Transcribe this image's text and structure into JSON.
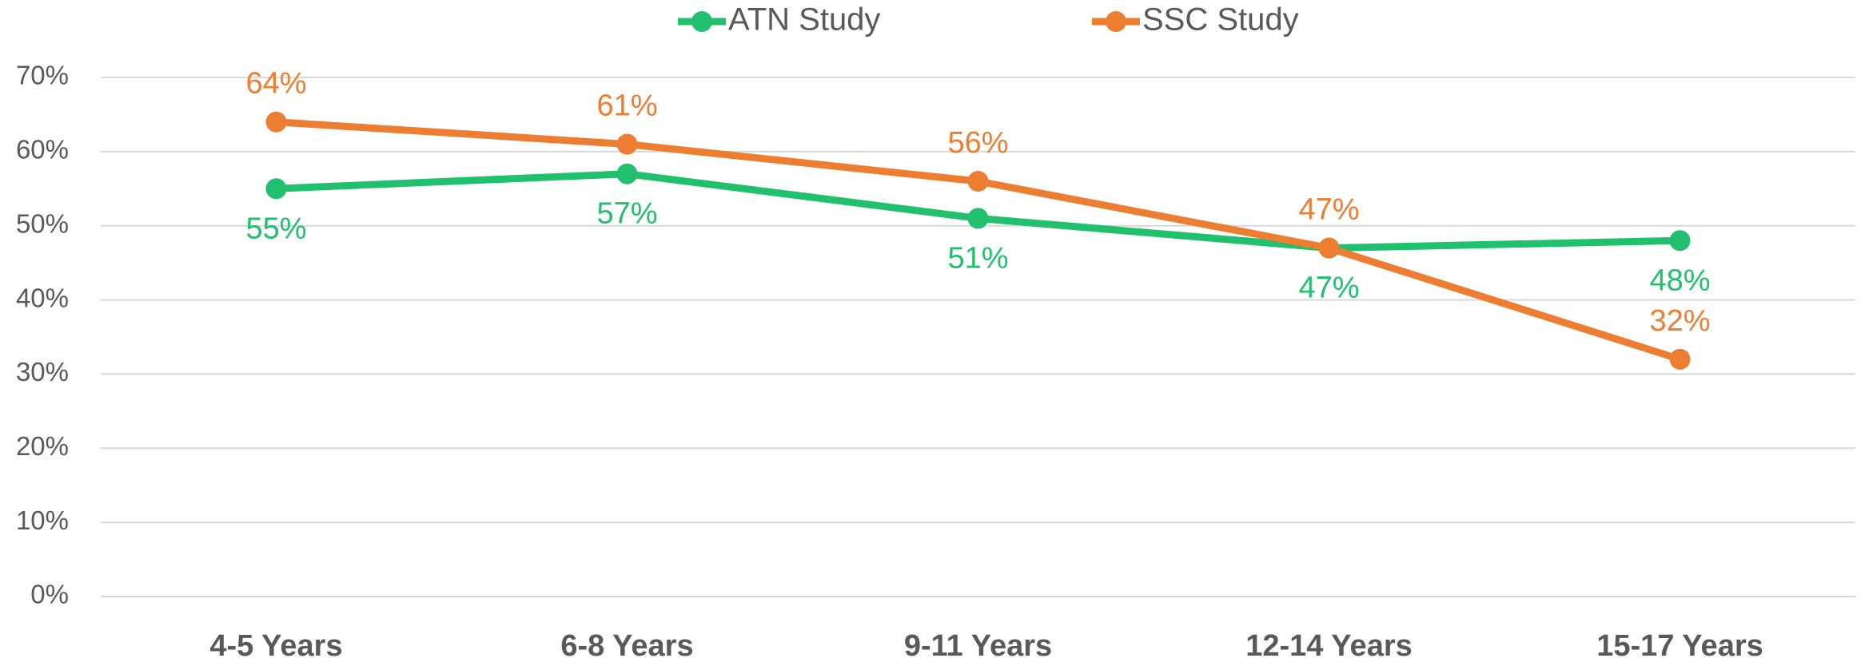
{
  "chart_data": {
    "type": "line",
    "categories": [
      "4-5 Years",
      "6-8 Years",
      "9-11 Years",
      "12-14 Years",
      "15-17 Years"
    ],
    "series": [
      {
        "name": "ATN Study",
        "color": "#21c06e",
        "values": [
          55,
          57,
          51,
          47,
          48
        ],
        "value_labels": [
          "55%",
          "57%",
          "51%",
          "47%",
          "48%"
        ]
      },
      {
        "name": "SSC Study",
        "color": "#ed7d31",
        "values": [
          64,
          61,
          56,
          47,
          32
        ],
        "value_labels": [
          "64%",
          "61%",
          "56%",
          "47%",
          "32%"
        ]
      }
    ],
    "ylim": [
      0,
      70
    ],
    "yticks": [
      {
        "value": 0,
        "label": "0%"
      },
      {
        "value": 10,
        "label": "10%"
      },
      {
        "value": 20,
        "label": "20%"
      },
      {
        "value": 30,
        "label": "30%"
      },
      {
        "value": 40,
        "label": "40%"
      },
      {
        "value": 50,
        "label": "50%"
      },
      {
        "value": 60,
        "label": "60%"
      },
      {
        "value": 70,
        "label": "70%"
      }
    ],
    "grid": true,
    "legend": "top"
  }
}
